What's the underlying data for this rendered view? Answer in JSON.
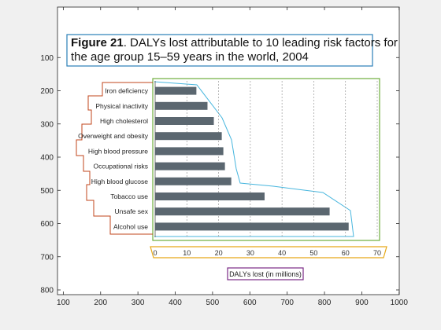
{
  "figure": {
    "title_bold": "Figure 21",
    "title_rest_line1": ". DALYs lost attributable to 10 leading risk factors for",
    "title_line2": "the age group 15–59 years in the world, 2004"
  },
  "outer_axes": {
    "x_ticks": [
      "100",
      "200",
      "300",
      "400",
      "500",
      "600",
      "700",
      "800",
      "900",
      "1000"
    ],
    "y_ticks": [
      "100",
      "200",
      "300",
      "400",
      "500",
      "600",
      "700",
      "800"
    ]
  },
  "chart_data": {
    "type": "bar",
    "orientation": "horizontal",
    "title": "Figure 21. DALYs lost attributable to 10 leading risk factors for the age group 15–59 years in the world, 2004",
    "xlabel": "DALYs lost (in millions)",
    "ylabel": "",
    "xlim": [
      0,
      70
    ],
    "x_ticks": [
      "0",
      "10",
      "20",
      "30",
      "40",
      "50",
      "60",
      "70"
    ],
    "grid": "vertical dashed",
    "categories": [
      "Iron deficiency",
      "Physical inactivity",
      "High cholesterol",
      "Overweight and obesity",
      "High blood pressure",
      "Occupational risks",
      "High blood glucose",
      "Tobacco use",
      "Unsafe sex",
      "Alcohol use"
    ],
    "values": [
      13,
      16.5,
      18.5,
      21,
      21.5,
      22,
      24,
      34.5,
      55,
      61
    ],
    "bar_color": "#5b6770"
  },
  "annotation_colors": {
    "title_box": "#2a7fb8",
    "category_outline": "#c0441b",
    "plot_box": "#6fae3c",
    "bar_outline": "#47b6de",
    "xaxis_box": "#e6a817",
    "xlabel_box": "#7a2a86"
  }
}
